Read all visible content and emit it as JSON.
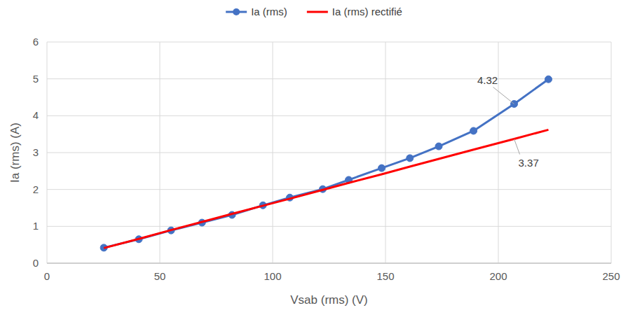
{
  "chart_data": {
    "type": "line",
    "x_label": "Vsab (rms) (V)",
    "y_label": "Ia (rms) (A)",
    "x": [
      25.2,
      40.7,
      55,
      68.7,
      82,
      95.7,
      107.6,
      122.2,
      133.7,
      148.3,
      160.8,
      173.6,
      189,
      207,
      222.2
    ],
    "series": [
      {
        "name": "Ia (rms)",
        "color": "#4472c4",
        "marker": "circle",
        "values": [
          0.42,
          0.65,
          0.89,
          1.1,
          1.31,
          1.57,
          1.78,
          2.01,
          2.26,
          2.58,
          2.85,
          3.17,
          3.59,
          4.32,
          4.99
        ]
      },
      {
        "name": "Ia (rms) rectifié",
        "color": "#ff0000",
        "marker": "none",
        "values": [
          0.41,
          0.66,
          0.9,
          1.12,
          1.34,
          1.56,
          1.75,
          1.99,
          2.18,
          2.41,
          2.62,
          2.83,
          3.08,
          3.37,
          3.62
        ]
      }
    ],
    "annotations": [
      {
        "text": "4.32",
        "x": 207,
        "y": 4.32
      },
      {
        "text": "3.37",
        "x": 207,
        "y": 3.37
      }
    ],
    "xlim": [
      0,
      250
    ],
    "xticks": [
      0,
      50,
      100,
      150,
      200,
      250
    ],
    "ylim": [
      0,
      6
    ],
    "yticks": [
      0,
      1,
      2,
      3,
      4,
      5,
      6
    ],
    "grid": true,
    "legend": "top"
  }
}
